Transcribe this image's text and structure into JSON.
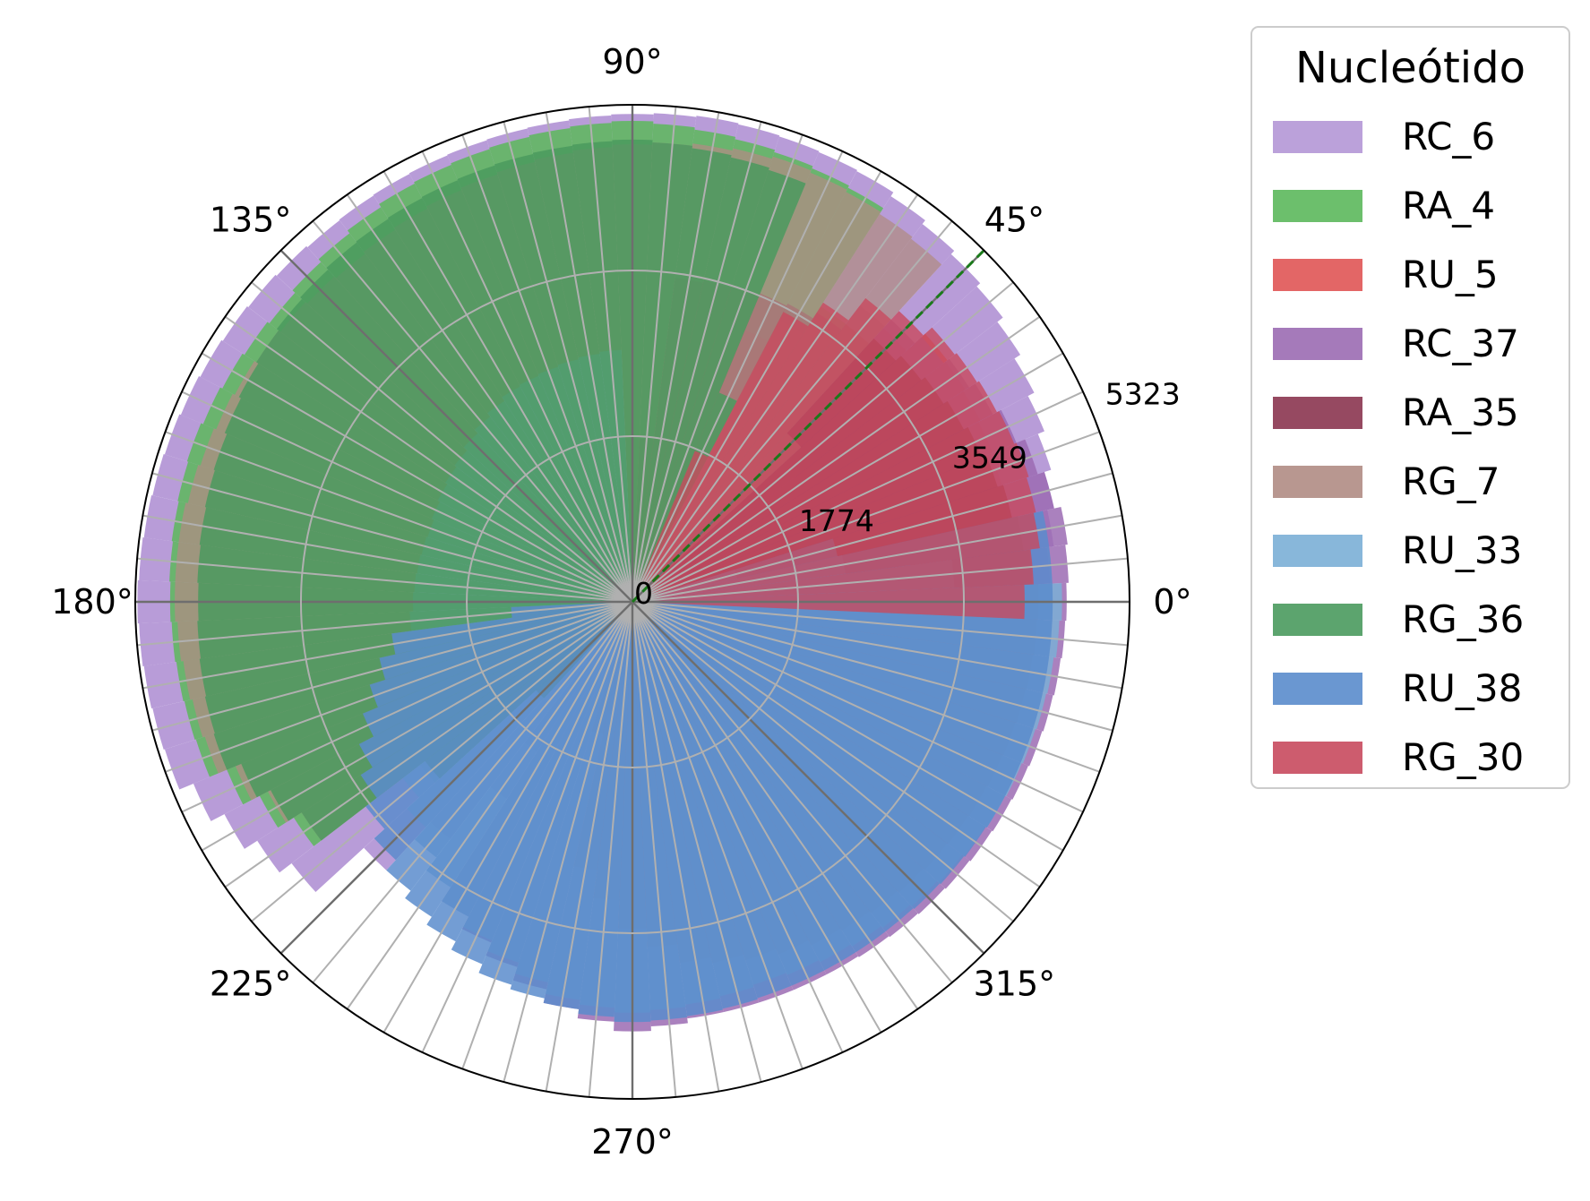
{
  "chart_data": {
    "type": "polar-bar",
    "title": "",
    "theta_direction": "counterclockwise",
    "theta_zero": "east",
    "angle_unit": "deg",
    "bin_count": 72,
    "bin_width_deg": 5,
    "r_max": 5323,
    "r_ticks": [
      0,
      1774,
      3549,
      5323
    ],
    "r_tick_labels": [
      "0",
      "1774",
      "3549",
      "5323"
    ],
    "r_gridlines": [
      1774,
      3549,
      5323
    ],
    "theta_ticks_deg": [
      0,
      45,
      90,
      135,
      180,
      225,
      270,
      315
    ],
    "theta_tick_labels": [
      "0°",
      "45°",
      "90°",
      "135°",
      "180°",
      "225°",
      "270°",
      "315°"
    ],
    "reference_line": {
      "angle_deg": 45,
      "color": "#1a7a1a",
      "style": "dashed"
    },
    "legend": {
      "title": "Nucleótido",
      "placement": "right"
    },
    "grid": true,
    "series": [
      {
        "name": "RC_6",
        "color": "#b497d6",
        "opacity": 0.95,
        "profile": [
          [
            0,
            4400
          ],
          [
            20,
            4700
          ],
          [
            40,
            5000
          ],
          [
            60,
            5200
          ],
          [
            80,
            5250
          ],
          [
            100,
            5200
          ],
          [
            130,
            5150
          ],
          [
            160,
            5250
          ],
          [
            180,
            5300
          ],
          [
            200,
            5250
          ],
          [
            220,
            4600
          ],
          [
            240,
            1800
          ],
          [
            260,
            1700
          ],
          [
            280,
            1800
          ],
          [
            300,
            1800
          ],
          [
            320,
            1800
          ],
          [
            340,
            1800
          ],
          [
            360,
            1800
          ]
        ]
      },
      {
        "name": "RA_4",
        "color": "#5cb85c",
        "opacity": 0.85,
        "profile": [
          [
            0,
            0
          ],
          [
            40,
            0
          ],
          [
            60,
            5000
          ],
          [
            90,
            5150
          ],
          [
            120,
            5050
          ],
          [
            140,
            4900
          ],
          [
            160,
            5000
          ],
          [
            180,
            4950
          ],
          [
            200,
            4900
          ],
          [
            215,
            4300
          ],
          [
            230,
            0
          ],
          [
            360,
            0
          ]
        ]
      },
      {
        "name": "RU_5",
        "color": "#e05555",
        "opacity": 0.8,
        "profile": [
          [
            0,
            4050
          ],
          [
            10,
            4100
          ],
          [
            20,
            4150
          ],
          [
            30,
            4200
          ],
          [
            40,
            4250
          ],
          [
            50,
            3700
          ],
          [
            60,
            3400
          ],
          [
            70,
            2900
          ],
          [
            80,
            2700
          ],
          [
            85,
            0
          ],
          [
            360,
            0
          ]
        ]
      },
      {
        "name": "RC_37",
        "color": "#9b6bb3",
        "opacity": 0.85,
        "profile": [
          [
            0,
            4650
          ],
          [
            10,
            4700
          ],
          [
            20,
            4550
          ],
          [
            30,
            4350
          ],
          [
            40,
            4200
          ],
          [
            50,
            4000
          ],
          [
            60,
            0
          ],
          [
            230,
            0
          ],
          [
            240,
            3800
          ],
          [
            260,
            4400
          ],
          [
            270,
            4600
          ],
          [
            280,
            4500
          ],
          [
            300,
            4500
          ],
          [
            320,
            4550
          ],
          [
            340,
            4600
          ],
          [
            360,
            4650
          ]
        ]
      },
      {
        "name": "RA_35",
        "color": "#8b3550",
        "opacity": 0.85,
        "profile": [
          [
            0,
            4350
          ],
          [
            20,
            4100
          ],
          [
            40,
            3900
          ],
          [
            60,
            3600
          ],
          [
            80,
            3500
          ],
          [
            90,
            0
          ],
          [
            250,
            0
          ],
          [
            260,
            2900
          ],
          [
            270,
            3500
          ],
          [
            280,
            3900
          ],
          [
            300,
            4150
          ],
          [
            320,
            4250
          ],
          [
            340,
            4300
          ],
          [
            360,
            4350
          ]
        ]
      },
      {
        "name": "RG_7",
        "color": "#b08c84",
        "opacity": 0.75,
        "profile": [
          [
            0,
            0
          ],
          [
            40,
            0
          ],
          [
            50,
            4900
          ],
          [
            70,
            5000
          ],
          [
            90,
            4900
          ],
          [
            110,
            4800
          ],
          [
            130,
            4700
          ],
          [
            150,
            4800
          ],
          [
            170,
            4900
          ],
          [
            180,
            4900
          ],
          [
            200,
            4800
          ],
          [
            215,
            4200
          ],
          [
            230,
            0
          ],
          [
            360,
            0
          ]
        ]
      },
      {
        "name": "RU_33",
        "color": "#7bafd6",
        "opacity": 0.85,
        "profile": [
          [
            0,
            4600
          ],
          [
            20,
            0
          ],
          [
            90,
            0
          ],
          [
            95,
            2700
          ],
          [
            120,
            2600
          ],
          [
            140,
            2400
          ],
          [
            160,
            2300
          ],
          [
            180,
            2350
          ],
          [
            200,
            2500
          ],
          [
            220,
            3100
          ],
          [
            240,
            3800
          ],
          [
            260,
            4300
          ],
          [
            270,
            4400
          ],
          [
            290,
            4300
          ],
          [
            310,
            4400
          ],
          [
            330,
            4500
          ],
          [
            350,
            4550
          ],
          [
            360,
            4600
          ]
        ]
      },
      {
        "name": "RG_36",
        "color": "#4a9a5e",
        "opacity": 0.85,
        "profile": [
          [
            0,
            0
          ],
          [
            60,
            0
          ],
          [
            70,
            4850
          ],
          [
            90,
            4950
          ],
          [
            110,
            4900
          ],
          [
            130,
            4850
          ],
          [
            140,
            4800
          ],
          [
            160,
            4700
          ],
          [
            180,
            4650
          ],
          [
            200,
            4700
          ],
          [
            215,
            4200
          ],
          [
            230,
            0
          ],
          [
            360,
            0
          ]
        ]
      },
      {
        "name": "RU_38",
        "color": "#5a8ccc",
        "opacity": 0.85,
        "profile": [
          [
            0,
            4500
          ],
          [
            10,
            4500
          ],
          [
            20,
            0
          ],
          [
            180,
            0
          ],
          [
            190,
            2600
          ],
          [
            210,
            3300
          ],
          [
            230,
            3900
          ],
          [
            250,
            4300
          ],
          [
            270,
            4500
          ],
          [
            290,
            4450
          ],
          [
            310,
            4450
          ],
          [
            330,
            4500
          ],
          [
            350,
            4500
          ],
          [
            360,
            4500
          ]
        ]
      },
      {
        "name": "RG_30",
        "color": "#c84a5e",
        "opacity": 0.8,
        "profile": [
          [
            0,
            4200
          ],
          [
            10,
            4400
          ],
          [
            20,
            4450
          ],
          [
            30,
            4400
          ],
          [
            40,
            4350
          ],
          [
            50,
            4100
          ],
          [
            60,
            3500
          ],
          [
            70,
            0
          ],
          [
            360,
            0
          ]
        ]
      }
    ]
  }
}
